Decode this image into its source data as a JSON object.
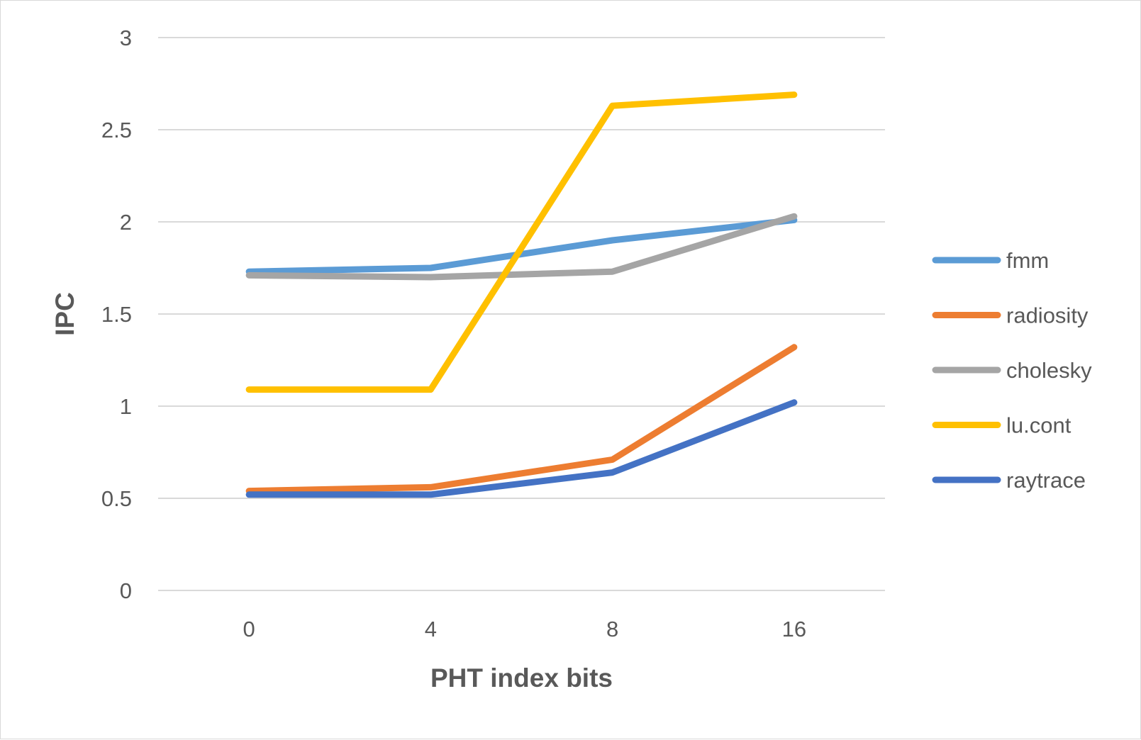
{
  "chart_data": {
    "type": "line",
    "xlabel": "PHT index bits",
    "ylabel": "IPC",
    "categories": [
      "0",
      "4",
      "8",
      "16"
    ],
    "ylim": [
      0,
      3
    ],
    "yticks": [
      "0",
      "0.5",
      "1",
      "1.5",
      "2",
      "2.5",
      "3"
    ],
    "grid": true,
    "legend_position": "right",
    "series": [
      {
        "name": "fmm",
        "color": "#5B9BD5",
        "values": [
          1.73,
          1.75,
          1.9,
          2.01
        ]
      },
      {
        "name": "radiosity",
        "color": "#ED7D31",
        "values": [
          0.54,
          0.56,
          0.71,
          1.32
        ]
      },
      {
        "name": "cholesky",
        "color": "#A5A5A5",
        "values": [
          1.71,
          1.7,
          1.73,
          2.03
        ]
      },
      {
        "name": "lu.cont",
        "color": "#FFC000",
        "values": [
          1.09,
          1.09,
          2.63,
          2.69
        ]
      },
      {
        "name": "raytrace",
        "color": "#4472C4",
        "values": [
          0.52,
          0.52,
          0.64,
          1.02
        ]
      }
    ]
  }
}
